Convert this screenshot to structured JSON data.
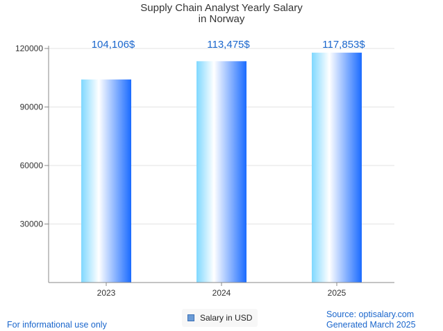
{
  "chart_data": {
    "type": "bar",
    "title_line1": "Supply Chain Analyst Yearly Salary",
    "title_line2": "in Norway",
    "categories": [
      "2023",
      "2024",
      "2025"
    ],
    "values": [
      104106,
      113475,
      117853
    ],
    "value_labels": [
      "104,106$",
      "113,475$",
      "117,853$"
    ],
    "ylim": [
      0,
      120000
    ],
    "yticks": [
      "30000",
      "60000",
      "90000",
      "120000"
    ],
    "ytick_values": [
      30000,
      60000,
      90000,
      120000
    ],
    "legend": "Salary in USD",
    "grid": true
  },
  "footer": {
    "note": "For informational use only",
    "source": "Source: optisalary.com",
    "generated": "Generated March 2025"
  },
  "colors": {
    "bar_light": "#7fd8ff",
    "bar_white": "#ffffff",
    "bar_dark": "#1a6bff",
    "value_label": "#1a66cc",
    "grid": "#e3e3e3",
    "axis": "#888888"
  }
}
